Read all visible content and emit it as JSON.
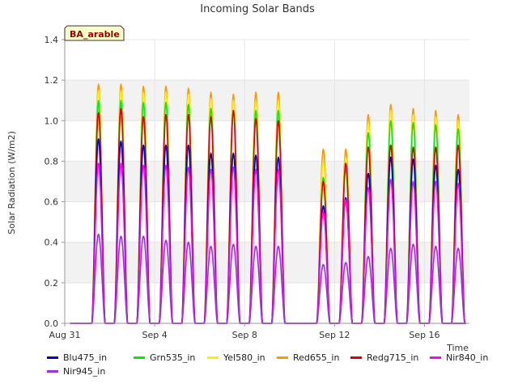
{
  "chart_data": {
    "type": "line",
    "title": "Incoming Solar Bands",
    "ylabel": "Solar Radiation (W/m2)",
    "xlabel": "Time",
    "annotation": "BA_arable",
    "ylim": [
      0,
      1.4
    ],
    "yticks": [
      0.0,
      0.2,
      0.4,
      0.6,
      0.8,
      1.0,
      1.2,
      1.4
    ],
    "ytick_labels": [
      "0.0",
      "0.2",
      "0.4",
      "0.6",
      "0.8",
      "1.0",
      "1.2",
      "1.4"
    ],
    "xlim": [
      "2023-08-31",
      "2023-09-18"
    ],
    "xticks": [
      "2023-08-31",
      "2023-09-04",
      "2023-09-08",
      "2023-09-12",
      "2023-09-16"
    ],
    "xtick_labels": [
      "Aug 31",
      "Sep 4",
      "Sep 8",
      "Sep 12",
      "Sep 16"
    ],
    "grid": true,
    "legend_position": "bottom",
    "series": [
      {
        "name": "Blu475_in",
        "color": "#0000cc"
      },
      {
        "name": "Grn535_in",
        "color": "#00ee00"
      },
      {
        "name": "Yel580_in",
        "color": "#ffee00"
      },
      {
        "name": "Red655_in",
        "color": "#ff9900"
      },
      {
        "name": "Redg715_in",
        "color": "#dd0000"
      },
      {
        "name": "Nir840_in",
        "color": "#ff00ff"
      },
      {
        "name": "Nir945_in",
        "color": "#9933dd"
      }
    ],
    "daily_peaks": [
      {
        "day": "2023-09-01",
        "Blu475_in": 0.91,
        "Grn535_in": 1.1,
        "Yel580_in": 1.15,
        "Red655_in": 1.18,
        "Redg715_in": 1.04,
        "Nir840_in": 0.79,
        "Nir945_in": 0.44
      },
      {
        "day": "2023-09-02",
        "Blu475_in": 0.9,
        "Grn535_in": 1.1,
        "Yel580_in": 1.15,
        "Red655_in": 1.18,
        "Redg715_in": 1.06,
        "Nir840_in": 0.79,
        "Nir945_in": 0.43
      },
      {
        "day": "2023-09-03",
        "Blu475_in": 0.88,
        "Grn535_in": 1.09,
        "Yel580_in": 1.14,
        "Red655_in": 1.17,
        "Redg715_in": 1.02,
        "Nir840_in": 0.78,
        "Nir945_in": 0.43
      },
      {
        "day": "2023-09-04",
        "Blu475_in": 0.88,
        "Grn535_in": 1.09,
        "Yel580_in": 1.14,
        "Red655_in": 1.17,
        "Redg715_in": 1.03,
        "Nir840_in": 0.78,
        "Nir945_in": 0.41
      },
      {
        "day": "2023-09-05",
        "Blu475_in": 0.88,
        "Grn535_in": 1.08,
        "Yel580_in": 1.13,
        "Red655_in": 1.16,
        "Redg715_in": 1.03,
        "Nir840_in": 0.77,
        "Nir945_in": 0.4
      },
      {
        "day": "2023-09-06",
        "Blu475_in": 0.84,
        "Grn535_in": 1.06,
        "Yel580_in": 1.11,
        "Red655_in": 1.14,
        "Redg715_in": 1.02,
        "Nir840_in": 0.76,
        "Nir945_in": 0.38
      },
      {
        "day": "2023-09-07",
        "Blu475_in": 0.84,
        "Grn535_in": 1.05,
        "Yel580_in": 1.1,
        "Red655_in": 1.13,
        "Redg715_in": 1.05,
        "Nir840_in": 0.77,
        "Nir945_in": 0.39
      },
      {
        "day": "2023-09-08",
        "Blu475_in": 0.83,
        "Grn535_in": 1.05,
        "Yel580_in": 1.1,
        "Red655_in": 1.14,
        "Redg715_in": 1.01,
        "Nir840_in": 0.76,
        "Nir945_in": 0.38
      },
      {
        "day": "2023-09-09",
        "Blu475_in": 0.82,
        "Grn535_in": 1.05,
        "Yel580_in": 1.1,
        "Red655_in": 1.14,
        "Redg715_in": 1.0,
        "Nir840_in": 0.76,
        "Nir945_in": 0.38
      },
      {
        "day": "2023-09-11",
        "Blu475_in": 0.58,
        "Grn535_in": 0.72,
        "Yel580_in": 0.8,
        "Red655_in": 0.86,
        "Redg715_in": 0.7,
        "Nir840_in": 0.55,
        "Nir945_in": 0.29
      },
      {
        "day": "2023-09-12",
        "Blu475_in": 0.62,
        "Grn535_in": 0.76,
        "Yel580_in": 0.82,
        "Red655_in": 0.86,
        "Redg715_in": 0.79,
        "Nir840_in": 0.61,
        "Nir945_in": 0.3
      },
      {
        "day": "2023-09-13",
        "Blu475_in": 0.74,
        "Grn535_in": 0.94,
        "Yel580_in": 0.99,
        "Red655_in": 1.03,
        "Redg715_in": 0.87,
        "Nir840_in": 0.67,
        "Nir945_in": 0.33
      },
      {
        "day": "2023-09-14",
        "Blu475_in": 0.82,
        "Grn535_in": 1.0,
        "Yel580_in": 1.05,
        "Red655_in": 1.08,
        "Redg715_in": 0.88,
        "Nir840_in": 0.71,
        "Nir945_in": 0.37
      },
      {
        "day": "2023-09-15",
        "Blu475_in": 0.81,
        "Grn535_in": 0.99,
        "Yel580_in": 1.03,
        "Red655_in": 1.06,
        "Redg715_in": 0.87,
        "Nir840_in": 0.7,
        "Nir945_in": 0.39
      },
      {
        "day": "2023-09-16",
        "Blu475_in": 0.78,
        "Grn535_in": 0.98,
        "Yel580_in": 1.02,
        "Red655_in": 1.05,
        "Redg715_in": 0.87,
        "Nir840_in": 0.7,
        "Nir945_in": 0.38
      },
      {
        "day": "2023-09-17",
        "Blu475_in": 0.76,
        "Grn535_in": 0.96,
        "Yel580_in": 1.0,
        "Red655_in": 1.03,
        "Redg715_in": 0.88,
        "Nir840_in": 0.69,
        "Nir945_in": 0.37
      }
    ],
    "gap": [
      "2023-09-09T18:00",
      "2023-09-10T21:00"
    ]
  }
}
